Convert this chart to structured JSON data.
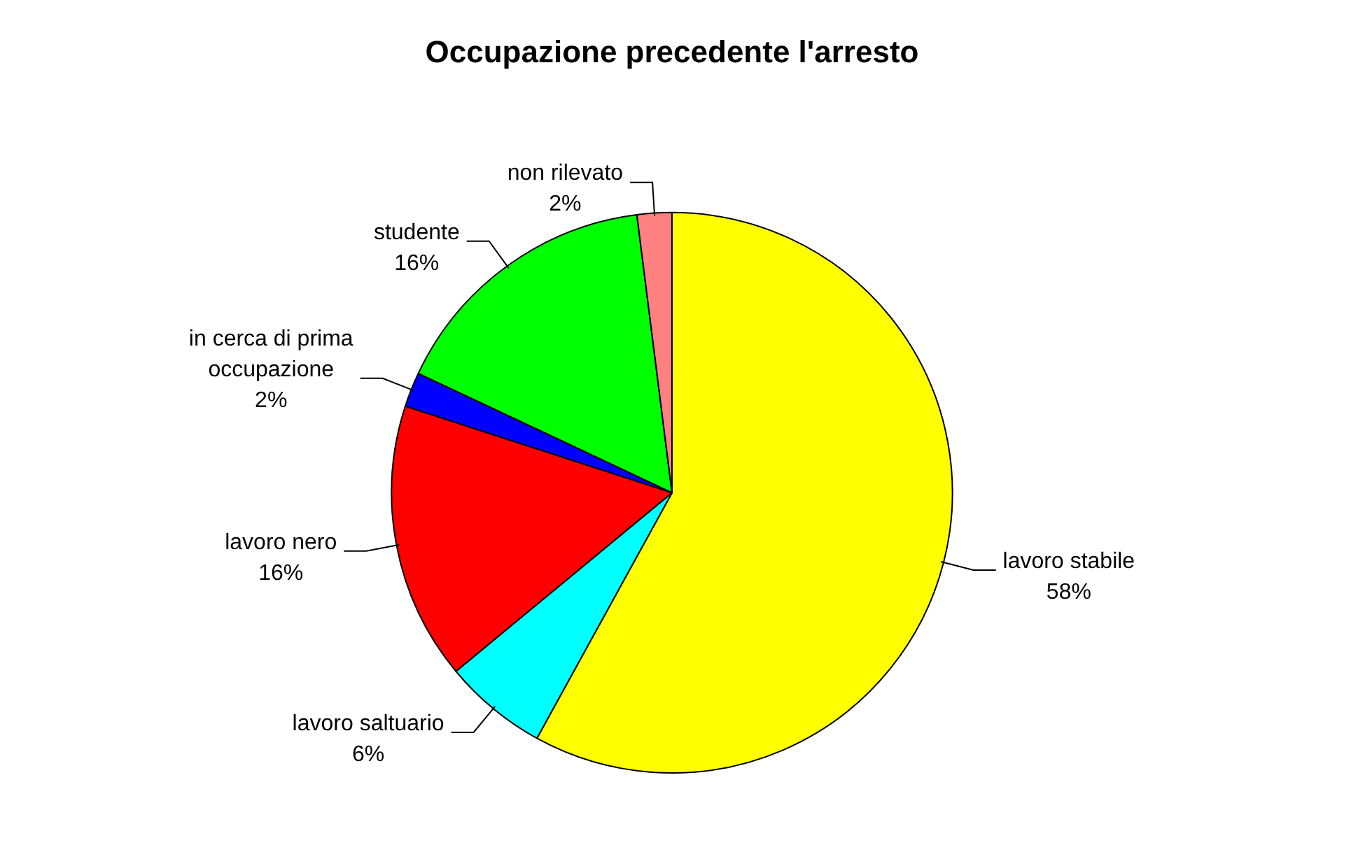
{
  "chart_data": {
    "type": "pie",
    "title": "Occupazione precedente l'arresto",
    "categories": [
      "lavoro stabile",
      "lavoro saltuario",
      "lavoro nero",
      "in cerca di prima occupazione",
      "studente",
      "non rilevato"
    ],
    "values": [
      58,
      6,
      16,
      2,
      16,
      2
    ],
    "value_labels": [
      "58%",
      "6%",
      "16%",
      "2%",
      "16%",
      "2%"
    ],
    "colors": [
      "#ffff00",
      "#00ffff",
      "#ff0000",
      "#0000ff",
      "#00ff00",
      "#ff8080"
    ],
    "legend": false
  }
}
